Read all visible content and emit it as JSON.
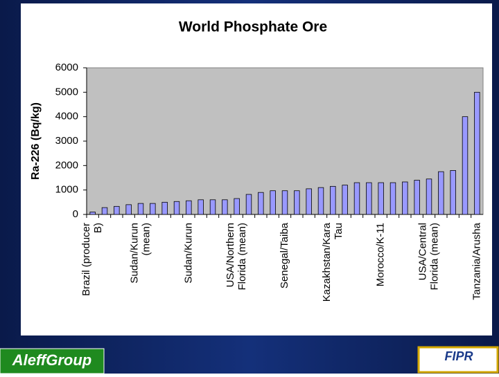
{
  "chart_data": {
    "type": "bar",
    "title": "World Phosphate Ore",
    "ylabel": "Ra-226 (Bq/kg)",
    "categories": [
      "Brazil (producer B)",
      null,
      null,
      null,
      "Sudan/Kurun (mean)",
      null,
      null,
      null,
      "Sudan/Kurun",
      null,
      null,
      null,
      "USA/Northern Florida (mean)",
      null,
      null,
      null,
      "Senegal/Taiba",
      null,
      null,
      null,
      "Kazakhstan/Kara Tau",
      null,
      null,
      null,
      "Morocco/K-11",
      null,
      null,
      null,
      "USA/Central Florida (mean)",
      null,
      null,
      null,
      "Tanzania/Arusha"
    ],
    "values": [
      100,
      280,
      330,
      400,
      450,
      450,
      500,
      530,
      560,
      600,
      600,
      600,
      650,
      820,
      900,
      970,
      970,
      970,
      1050,
      1100,
      1150,
      1200,
      1300,
      1300,
      1300,
      1300,
      1330,
      1400,
      1450,
      1750,
      1800,
      4000,
      5000
    ],
    "color": "#9999ff",
    "ylim": [
      0,
      6000
    ],
    "yticks": [
      0,
      1000,
      2000,
      3000,
      4000,
      5000,
      6000
    ],
    "grid": false
  },
  "footer": {
    "left": "AleffGroup",
    "right": "FIPR"
  }
}
